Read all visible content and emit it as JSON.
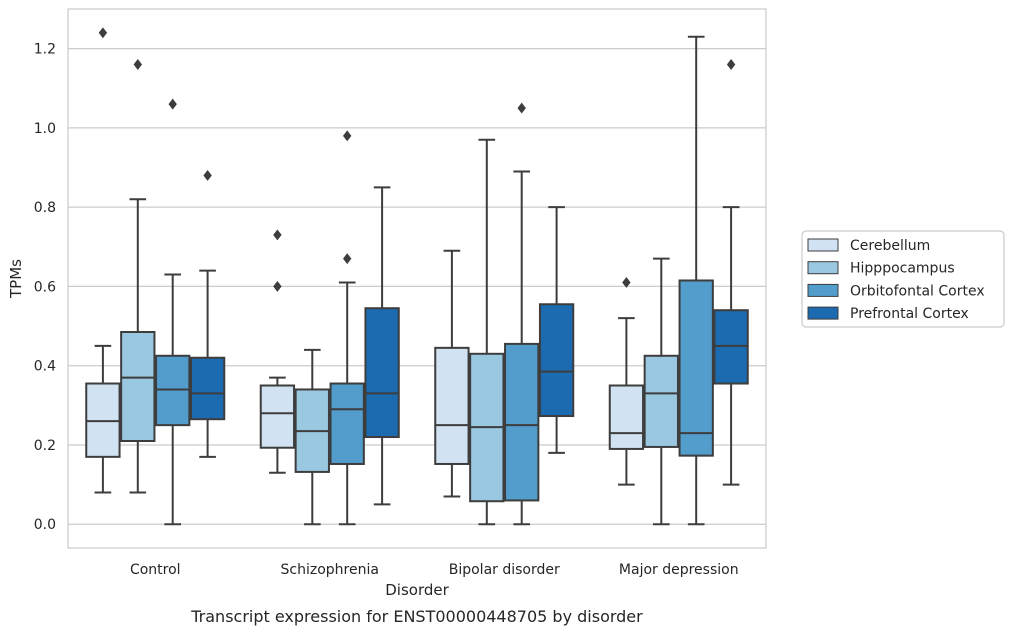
{
  "caption": "Transcript expression for ENST00000448705 by disorder",
  "chart_data": {
    "type": "box",
    "xlabel": "Disorder",
    "ylabel": "TPMs",
    "ylim": [
      -0.06,
      1.3
    ],
    "yticks": [
      "0.0",
      "0.2",
      "0.4",
      "0.6",
      "0.8",
      "1.0",
      "1.2"
    ],
    "grid": "horizontal",
    "legend_position": "right",
    "categories": [
      "Control",
      "Schizophrenia",
      "Bipolar disorder",
      "Major depression"
    ],
    "series": [
      {
        "name": "Cerebellum",
        "color": "#d1e2f2",
        "boxes": [
          {
            "whisker_low": 0.08,
            "q1": 0.17,
            "median": 0.26,
            "q3": 0.355,
            "whisker_high": 0.45,
            "outliers": [
              1.24
            ]
          },
          {
            "whisker_low": 0.13,
            "q1": 0.193,
            "median": 0.28,
            "q3": 0.35,
            "whisker_high": 0.37,
            "outliers": [
              0.6,
              0.73
            ]
          },
          {
            "whisker_low": 0.07,
            "q1": 0.152,
            "median": 0.25,
            "q3": 0.445,
            "whisker_high": 0.69,
            "outliers": []
          },
          {
            "whisker_low": 0.1,
            "q1": 0.19,
            "median": 0.23,
            "q3": 0.35,
            "whisker_high": 0.52,
            "outliers": [
              0.61
            ]
          }
        ]
      },
      {
        "name": "Hipppocampus",
        "color": "#9ac8e0",
        "boxes": [
          {
            "whisker_low": 0.08,
            "q1": 0.21,
            "median": 0.37,
            "q3": 0.485,
            "whisker_high": 0.82,
            "outliers": [
              1.16
            ]
          },
          {
            "whisker_low": 0.0,
            "q1": 0.132,
            "median": 0.235,
            "q3": 0.34,
            "whisker_high": 0.44,
            "outliers": []
          },
          {
            "whisker_low": 0.0,
            "q1": 0.058,
            "median": 0.245,
            "q3": 0.43,
            "whisker_high": 0.97,
            "outliers": []
          },
          {
            "whisker_low": 0.0,
            "q1": 0.195,
            "median": 0.33,
            "q3": 0.425,
            "whisker_high": 0.67,
            "outliers": []
          }
        ]
      },
      {
        "name": "Orbitofontal Cortex",
        "color": "#529dcc",
        "boxes": [
          {
            "whisker_low": 0.0,
            "q1": 0.25,
            "median": 0.34,
            "q3": 0.425,
            "whisker_high": 0.63,
            "outliers": [
              1.06
            ]
          },
          {
            "whisker_low": 0.0,
            "q1": 0.152,
            "median": 0.29,
            "q3": 0.355,
            "whisker_high": 0.61,
            "outliers": [
              0.67,
              0.98
            ]
          },
          {
            "whisker_low": 0.0,
            "q1": 0.06,
            "median": 0.25,
            "q3": 0.455,
            "whisker_high": 0.89,
            "outliers": [
              1.05
            ]
          },
          {
            "whisker_low": 0.0,
            "q1": 0.173,
            "median": 0.23,
            "q3": 0.615,
            "whisker_high": 1.23,
            "outliers": []
          }
        ]
      },
      {
        "name": "Prefrontal Cortex",
        "color": "#1c6aaf",
        "boxes": [
          {
            "whisker_low": 0.17,
            "q1": 0.265,
            "median": 0.33,
            "q3": 0.42,
            "whisker_high": 0.64,
            "outliers": [
              0.88
            ]
          },
          {
            "whisker_low": 0.05,
            "q1": 0.22,
            "median": 0.33,
            "q3": 0.545,
            "whisker_high": 0.85,
            "outliers": []
          },
          {
            "whisker_low": 0.18,
            "q1": 0.273,
            "median": 0.385,
            "q3": 0.555,
            "whisker_high": 0.8,
            "outliers": []
          },
          {
            "whisker_low": 0.1,
            "q1": 0.355,
            "median": 0.45,
            "q3": 0.54,
            "whisker_high": 0.8,
            "outliers": [
              1.16
            ]
          }
        ]
      }
    ]
  }
}
